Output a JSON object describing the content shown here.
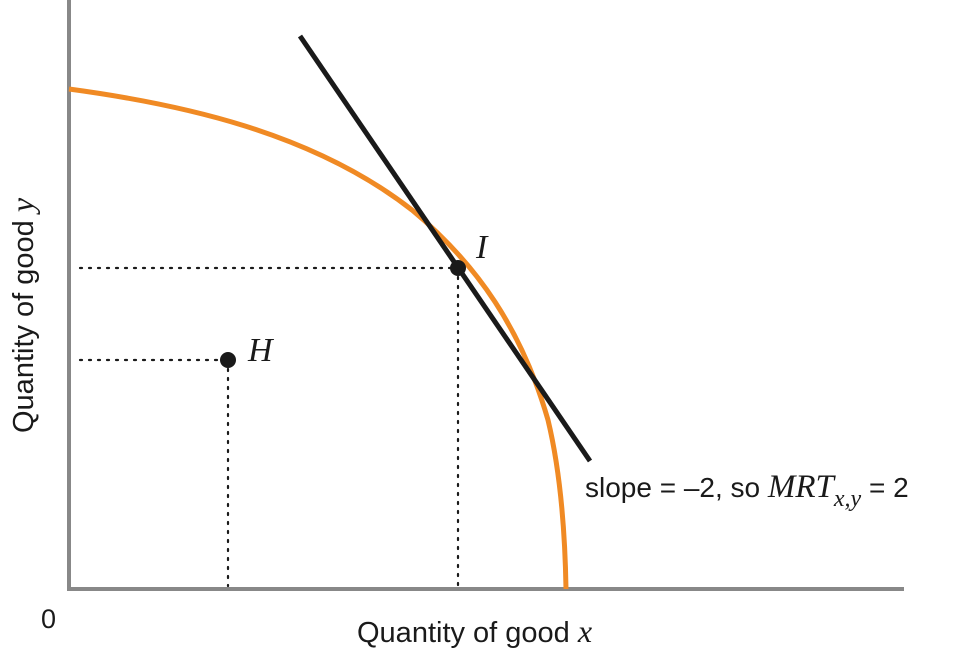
{
  "diagram": {
    "x_axis_label": "Quantity of good ",
    "x_axis_var": "x",
    "y_axis_label": "Quantity of good ",
    "y_axis_var": "y",
    "origin_label": "0",
    "point_I_label": "I",
    "point_H_label": "H",
    "tangent_note_prefix": "slope = –2, so ",
    "tangent_note_mrt": "MRT",
    "tangent_note_subscript": "x,y",
    "tangent_note_suffix": " = 2",
    "colors": {
      "axis": "#888888",
      "frontier": "#f08a24",
      "tangent_line": "#1a1a1a",
      "points": "#1a1a1a",
      "dotted_guides": "#1a1a1a"
    }
  }
}
